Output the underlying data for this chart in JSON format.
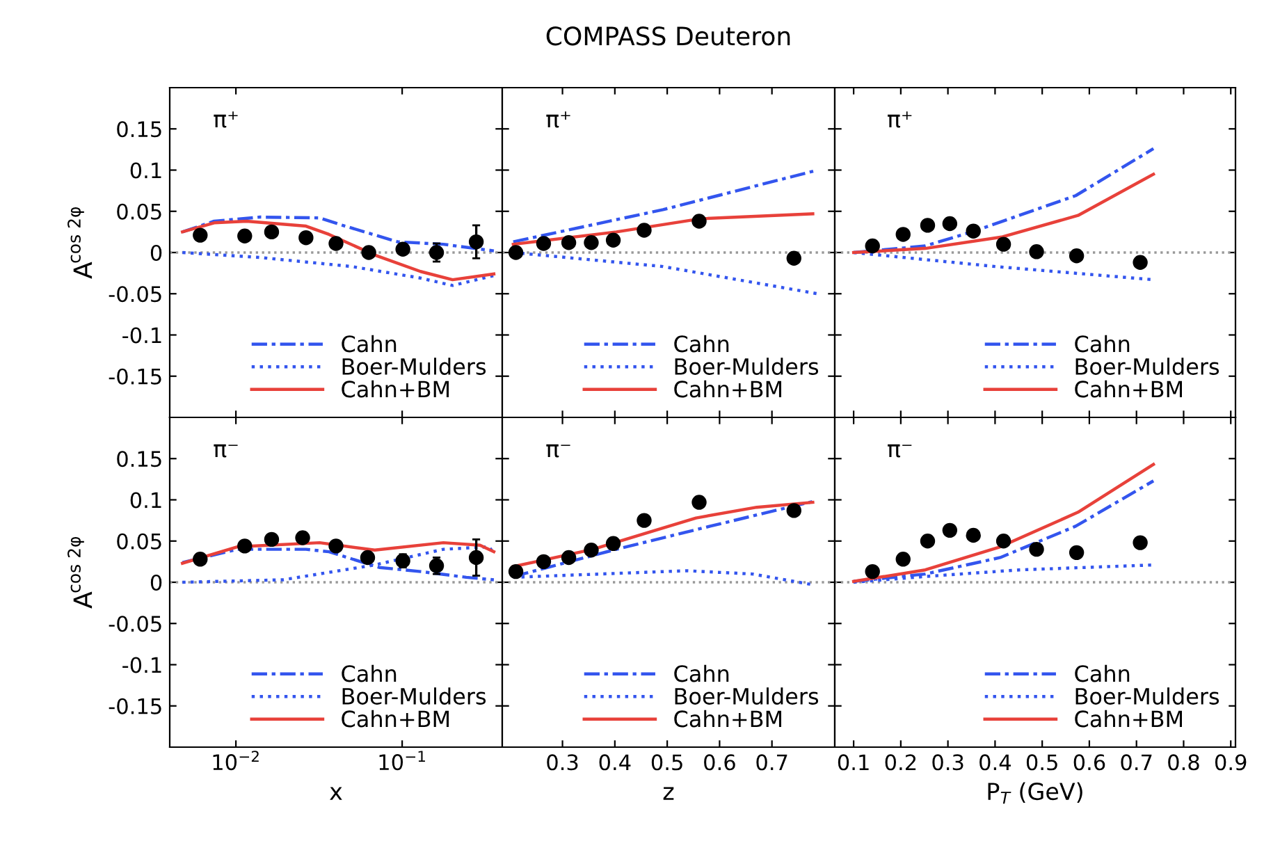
{
  "chart_data": [
    {
      "type": "line",
      "ylabel": "A$^{cos 2φ}$",
      "log": "x",
      "xlim": [
        0.004,
        0.4
      ],
      "ylim": [
        -0.2,
        0.2
      ],
      "yticks": [
        -0.15,
        -0.1,
        -0.05,
        0,
        0.05,
        0.1,
        0.15
      ],
      "tick_labels": "y",
      "legend": "bottom right",
      "annotations": [
        "π⁺"
      ],
      "ref_lines": [
        {
          "axis": "y",
          "value": 0,
          "color": "#999999",
          "line_style": "dotted"
        }
      ],
      "series": [
        {
          "name": "Cahn",
          "color": "#3355ee",
          "line_style": "dashdot",
          "x": [
            0.00477,
            0.0074,
            0.014,
            0.0319,
            0.0438,
            0.094,
            0.177,
            0.356
          ],
          "values": [
            0.025,
            0.038,
            0.043,
            0.042,
            0.033,
            0.013,
            0.01,
            0.002
          ]
        },
        {
          "name": "Boer-Mulders",
          "color": "#3355ee",
          "line_style": "dotted",
          "x": [
            0.00477,
            0.014,
            0.0498,
            0.129,
            0.201,
            0.356
          ],
          "values": [
            0.0,
            -0.006,
            -0.017,
            -0.031,
            -0.04,
            -0.028
          ]
        },
        {
          "name": "Cahn+BM",
          "color": "#e8413a",
          "line_style": "solid",
          "x": [
            0.00477,
            0.0074,
            0.0116,
            0.0264,
            0.0363,
            0.0684,
            0.129,
            0.201,
            0.356
          ],
          "values": [
            0.025,
            0.036,
            0.038,
            0.032,
            0.022,
            -0.003,
            -0.023,
            -0.033,
            -0.026
          ]
        },
        {
          "type": "scatter",
          "color": "#000000",
          "marker": "circle",
          "x": [
            0.0061,
            0.0113,
            0.0164,
            0.0264,
            0.04,
            0.063,
            0.101,
            0.161,
            0.279
          ],
          "values": [
            0.021,
            0.02,
            0.025,
            0.018,
            0.011,
            0.0,
            0.004,
            0.0,
            0.013
          ],
          "errors": [
            null,
            null,
            null,
            null,
            null,
            null,
            0.006,
            0.011,
            0.02
          ]
        }
      ]
    },
    {
      "type": "line",
      "title": "COMPASS Deuteron",
      "xlim": [
        0.185,
        0.82
      ],
      "ylim": [
        -0.2,
        0.2
      ],
      "tick_labels": false,
      "legend": "bottom right",
      "annotations": [
        "π⁺"
      ],
      "ref_lines": [
        {
          "axis": "y",
          "value": 0,
          "color": "#999999",
          "line_style": "dotted"
        }
      ],
      "series": [
        {
          "name": "Cahn",
          "color": "#3355ee",
          "line_style": "dashdot",
          "x": [
            0.206,
            0.492,
            0.787
          ],
          "values": [
            0.013,
            0.052,
            0.1
          ]
        },
        {
          "name": "Boer-Mulders",
          "color": "#3355ee",
          "line_style": "dotted",
          "x": [
            0.206,
            0.492,
            0.787
          ],
          "values": [
            0.0,
            -0.017,
            -0.05
          ]
        },
        {
          "name": "Cahn+BM",
          "color": "#e8413a",
          "line_style": "solid",
          "x": [
            0.206,
            0.403,
            0.564,
            0.778
          ],
          "values": [
            0.01,
            0.025,
            0.041,
            0.047
          ]
        },
        {
          "type": "scatter",
          "color": "#000000",
          "marker": "circle",
          "x": [
            0.211,
            0.264,
            0.312,
            0.355,
            0.397,
            0.456,
            0.561,
            0.742
          ],
          "values": [
            0.0,
            0.011,
            0.012,
            0.012,
            0.015,
            0.027,
            0.038,
            -0.007
          ]
        }
      ]
    },
    {
      "type": "line",
      "xlim": [
        0.06,
        0.91
      ],
      "ylim": [
        -0.2,
        0.2
      ],
      "tick_labels": false,
      "legend": "bottom right",
      "annotations": [
        "π⁺"
      ],
      "ref_lines": [
        {
          "axis": "y",
          "value": 0,
          "color": "#999999",
          "line_style": "dotted"
        }
      ],
      "series": [
        {
          "name": "Cahn",
          "color": "#3355ee",
          "line_style": "dashdot",
          "x": [
            0.1,
            0.252,
            0.351,
            0.571,
            0.736
          ],
          "values": [
            0.0,
            0.008,
            0.025,
            0.069,
            0.126
          ]
        },
        {
          "name": "Boer-Mulders",
          "color": "#3355ee",
          "line_style": "dotted",
          "x": [
            0.1,
            0.401,
            0.736
          ],
          "values": [
            0.0,
            -0.017,
            -0.033
          ]
        },
        {
          "name": "Cahn+BM",
          "color": "#e8413a",
          "line_style": "solid",
          "x": [
            0.1,
            0.252,
            0.416,
            0.576,
            0.736
          ],
          "values": [
            0.0,
            0.005,
            0.019,
            0.045,
            0.095
          ]
        },
        {
          "type": "scatter",
          "color": "#000000",
          "marker": "circle",
          "x": [
            0.14,
            0.205,
            0.257,
            0.304,
            0.354,
            0.418,
            0.488,
            0.573,
            0.708
          ],
          "values": [
            0.008,
            0.022,
            0.033,
            0.035,
            0.026,
            0.01,
            0.001,
            -0.004,
            -0.012
          ]
        }
      ]
    },
    {
      "type": "line",
      "xlabel": "x",
      "ylabel": "A$^{cos 2φ}$",
      "log": "x",
      "xlim": [
        0.004,
        0.4
      ],
      "xticks": [
        {
          "value": 0.01,
          "label": "10$^{−2}$"
        },
        {
          "value": 0.1,
          "label": "10$^{−1}$"
        }
      ],
      "ylim": [
        -0.2,
        0.2
      ],
      "yticks": [
        -0.15,
        -0.1,
        -0.05,
        0,
        0.05,
        0.1,
        0.15
      ],
      "legend": "bottom right",
      "annotations": [
        "π⁻"
      ],
      "ref_lines": [
        {
          "axis": "y",
          "value": 0,
          "color": "#999999",
          "line_style": "dotted"
        }
      ],
      "series": [
        {
          "name": "Cahn",
          "color": "#3355ee",
          "line_style": "dashdot",
          "x": [
            0.00477,
            0.0102,
            0.0264,
            0.0363,
            0.0728,
            0.129,
            0.243,
            0.356
          ],
          "values": [
            0.024,
            0.04,
            0.04,
            0.037,
            0.018,
            0.013,
            0.006,
            0.003
          ]
        },
        {
          "name": "Boer-Mulders",
          "color": "#3355ee",
          "line_style": "dotted",
          "x": [
            0.00477,
            0.0192,
            0.0684,
            0.177,
            0.333,
            0.356
          ],
          "values": [
            0.0,
            0.003,
            0.021,
            0.04,
            0.043,
            0.035
          ]
        },
        {
          "name": "Cahn+BM",
          "color": "#e8413a",
          "line_style": "solid",
          "x": [
            0.00477,
            0.0102,
            0.0319,
            0.0684,
            0.177,
            0.294,
            0.356
          ],
          "values": [
            0.023,
            0.043,
            0.048,
            0.039,
            0.048,
            0.045,
            0.037
          ]
        },
        {
          "type": "scatter",
          "color": "#000000",
          "marker": "circle",
          "x": [
            0.0061,
            0.0113,
            0.0164,
            0.0252,
            0.04,
            0.062,
            0.101,
            0.161,
            0.279
          ],
          "values": [
            0.028,
            0.044,
            0.052,
            0.054,
            0.044,
            0.03,
            0.026,
            0.02,
            0.03
          ],
          "errors": [
            null,
            null,
            null,
            null,
            null,
            null,
            0.008,
            0.01,
            0.022
          ]
        }
      ]
    },
    {
      "type": "line",
      "xlabel": "z",
      "xlim": [
        0.185,
        0.82
      ],
      "xticks": [
        0.3,
        0.4,
        0.5,
        0.6,
        0.7
      ],
      "ylim": [
        -0.2,
        0.2
      ],
      "tick_labels": "x",
      "legend": "bottom right",
      "annotations": [
        "π⁻"
      ],
      "ref_lines": [
        {
          "axis": "y",
          "value": 0,
          "color": "#999999",
          "line_style": "dotted"
        }
      ],
      "series": [
        {
          "name": "Cahn",
          "color": "#3355ee",
          "line_style": "dashdot",
          "x": [
            0.206,
            0.403,
            0.582,
            0.778
          ],
          "values": [
            0.007,
            0.04,
            0.068,
            0.098
          ]
        },
        {
          "name": "Boer-Mulders",
          "color": "#3355ee",
          "line_style": "dotted",
          "x": [
            0.206,
            0.537,
            0.663,
            0.778
          ],
          "values": [
            0.006,
            0.014,
            0.01,
            -0.003
          ]
        },
        {
          "name": "Cahn+BM",
          "color": "#e8413a",
          "line_style": "solid",
          "x": [
            0.206,
            0.358,
            0.555,
            0.671,
            0.778
          ],
          "values": [
            0.019,
            0.04,
            0.078,
            0.091,
            0.097
          ]
        },
        {
          "type": "scatter",
          "color": "#000000",
          "marker": "circle",
          "x": [
            0.211,
            0.264,
            0.312,
            0.355,
            0.397,
            0.456,
            0.561,
            0.742
          ],
          "values": [
            0.013,
            0.025,
            0.03,
            0.039,
            0.047,
            0.075,
            0.097,
            0.087
          ]
        }
      ]
    },
    {
      "type": "line",
      "xlabel": "P$_{T}$ (GeV)",
      "xlim": [
        0.06,
        0.91
      ],
      "xticks": [
        0.1,
        0.2,
        0.3,
        0.4,
        0.5,
        0.6,
        0.7,
        0.8,
        0.9
      ],
      "ylim": [
        -0.2,
        0.2
      ],
      "tick_labels": "x",
      "legend": "bottom right",
      "annotations": [
        "π⁻"
      ],
      "ref_lines": [
        {
          "axis": "y",
          "value": 0,
          "color": "#999999",
          "line_style": "dotted"
        }
      ],
      "series": [
        {
          "name": "Cahn",
          "color": "#3355ee",
          "line_style": "dashdot",
          "x": [
            0.1,
            0.252,
            0.411,
            0.571,
            0.736
          ],
          "values": [
            0.001,
            0.01,
            0.03,
            0.068,
            0.123
          ]
        },
        {
          "name": "Boer-Mulders",
          "color": "#3355ee",
          "line_style": "dotted",
          "x": [
            0.1,
            0.252,
            0.451,
            0.736
          ],
          "values": [
            0.0,
            0.007,
            0.015,
            0.021
          ]
        },
        {
          "name": "Cahn+BM",
          "color": "#e8413a",
          "line_style": "solid",
          "x": [
            0.1,
            0.252,
            0.411,
            0.576,
            0.736
          ],
          "values": [
            0.001,
            0.015,
            0.043,
            0.085,
            0.143
          ]
        },
        {
          "type": "scatter",
          "color": "#000000",
          "marker": "circle",
          "x": [
            0.14,
            0.205,
            0.257,
            0.304,
            0.354,
            0.418,
            0.488,
            0.573,
            0.708
          ],
          "values": [
            0.013,
            0.028,
            0.05,
            0.063,
            0.057,
            0.05,
            0.04,
            0.036,
            0.048
          ]
        }
      ]
    }
  ]
}
